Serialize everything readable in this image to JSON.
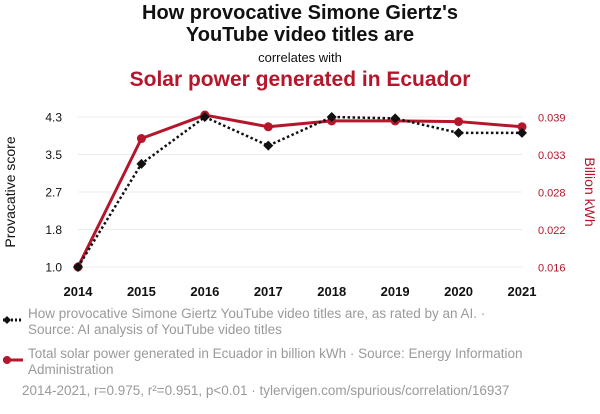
{
  "titles": {
    "line1": "How provocative Simone Giertz's",
    "line2": "YouTube video titles are",
    "connector": "correlates with",
    "line3": "Solar power generated in Ecuador"
  },
  "legend": {
    "series1": "How provocative Simone Giertz YouTube video titles are, as rated by an AI. · Source: AI analysis of YouTube video titles",
    "series2": "Total solar power generated in Ecuador in billion kWh · Source: Energy Information Administration"
  },
  "footer": "2014-2021, r=0.975, r²=0.951, p<0.01 · tylervigen.com/spurious/correlation/16937",
  "chart_data": {
    "type": "line",
    "x": [
      "2014",
      "2015",
      "2016",
      "2017",
      "2018",
      "2019",
      "2020",
      "2021"
    ],
    "series": [
      {
        "name": "How provocative Simone Giertz YouTube video titles are, as rated by an AI.",
        "axis": "left",
        "color": "#111111",
        "style": "dotted",
        "marker": "diamond",
        "values": [
          1.0,
          3.27,
          4.3,
          3.67,
          4.3,
          4.27,
          3.95,
          3.95
        ]
      },
      {
        "name": "Total solar power generated in Ecuador in billion kWh",
        "axis": "right",
        "color": "#b5162b",
        "style": "solid",
        "marker": "circle",
        "values": [
          0.016,
          0.0357,
          0.0393,
          0.0375,
          0.0384,
          0.0384,
          0.0383,
          0.0375
        ]
      }
    ],
    "ylabel_left": "Provacative score",
    "ylabel_right": "Billion kWh",
    "yticks_left": [
      "1.0",
      "1.8",
      "2.7",
      "3.5",
      "4.3"
    ],
    "ytick_values_left": [
      1.0,
      1.825,
      2.65,
      3.475,
      4.3
    ],
    "ylim_left": [
      1.0,
      4.3
    ],
    "yticks_right": [
      "0.016",
      "0.022",
      "0.028",
      "0.033",
      "0.039"
    ],
    "ytick_values_right": [
      0.016,
      0.02175,
      0.0275,
      0.03325,
      0.039
    ],
    "ylim_right": [
      0.016,
      0.039
    ],
    "grid": true
  }
}
